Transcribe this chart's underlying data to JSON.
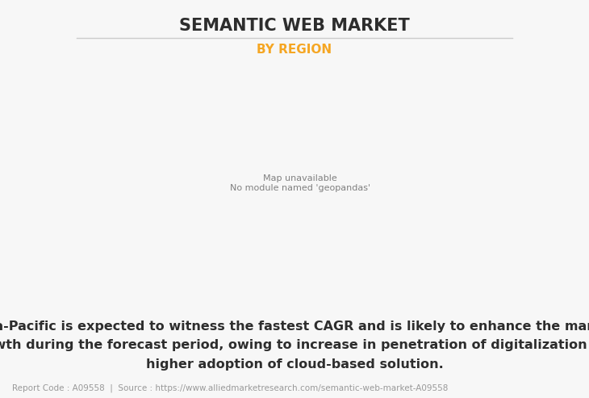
{
  "title": "SEMANTIC WEB MARKET",
  "subtitle": "BY REGION",
  "title_color": "#2d2d2d",
  "subtitle_color": "#f5a623",
  "body_text": "Asia-Pacific is expected to witness the fastest CAGR and is likely to enhance the market\ngrowth during the forecast period, owing to increase in penetration of digitalization and\nhigher adoption of cloud-based solution.",
  "footer_text": "Report Code : A09558  |  Source : https://www.alliedmarketresearch.com/semantic-web-market-A09558",
  "background_color": "#f7f7f7",
  "map_land_color": "#8fbc8f",
  "map_border_color": "#4a7a5a",
  "map_usa_color": "#e8e8e8",
  "title_fontsize": 15,
  "subtitle_fontsize": 11,
  "body_fontsize": 11.5,
  "footer_fontsize": 7.5,
  "line_color": "#cccccc"
}
